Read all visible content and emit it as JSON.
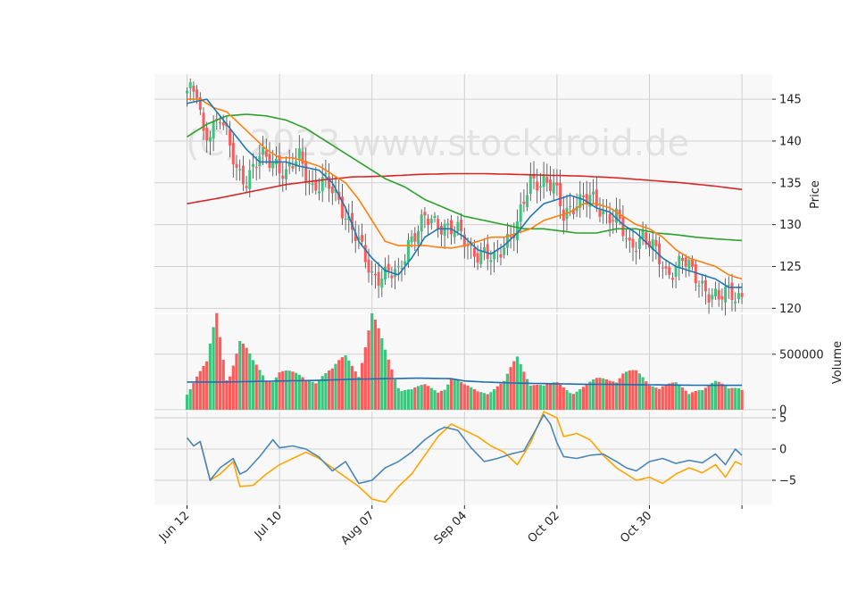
{
  "chart_data": {
    "type": "candlestick",
    "watermark": "(C) 2023 www.stockdroid.de",
    "x_tick_labels": [
      "Jun 12",
      "Jul 10",
      "Aug 07",
      "Sep 04",
      "Oct 02",
      "Oct 30"
    ],
    "x_tick_index": [
      0,
      28,
      56,
      84,
      112,
      140
    ],
    "colors": {
      "up": "#3dc47e",
      "down": "#ff5a5a",
      "ma_fast": "#1f77b4",
      "ma_mid": "#ff7f0e",
      "ma_slow": "#2ca02c",
      "ma_long": "#d62728",
      "vol_ma": "#1f6cb4",
      "osc_a": "#4a86b8",
      "osc_b": "#ffa500",
      "panel_bg": "#f8f8f8",
      "grid": "#d0d0d0"
    },
    "price_panel": {
      "ylabel": "Price",
      "ylim": [
        119.5,
        148
      ],
      "ticks": [
        120,
        125,
        130,
        135,
        140,
        145
      ]
    },
    "volume_panel": {
      "ylabel": "Volume",
      "ylim": [
        0,
        860000
      ],
      "ticks": [
        0,
        500000
      ],
      "tick_labels": [
        "0",
        "500000"
      ]
    },
    "osc_panel": {
      "ylabel": "",
      "ylim": [
        -9,
        6
      ],
      "ticks": [
        -5,
        0,
        5
      ]
    },
    "close_anchors": [
      [
        0,
        146
      ],
      [
        3,
        145.5
      ],
      [
        5,
        140.5
      ],
      [
        8,
        142
      ],
      [
        10,
        143
      ],
      [
        15,
        136.5
      ],
      [
        18,
        135.5
      ],
      [
        22,
        138
      ],
      [
        27,
        137.5
      ],
      [
        30,
        136
      ],
      [
        34,
        138
      ],
      [
        38,
        134.5
      ],
      [
        42,
        135
      ],
      [
        46,
        133
      ],
      [
        50,
        129.5
      ],
      [
        56,
        124
      ],
      [
        60,
        124
      ],
      [
        64,
        124
      ],
      [
        67,
        128
      ],
      [
        72,
        130.5
      ],
      [
        78,
        130
      ],
      [
        82,
        129
      ],
      [
        86,
        127
      ],
      [
        90,
        126.5
      ],
      [
        93,
        125.5
      ],
      [
        97,
        128.5
      ],
      [
        100,
        130
      ],
      [
        104,
        135
      ],
      [
        108,
        135.5
      ],
      [
        111,
        134.5
      ],
      [
        114,
        131
      ],
      [
        118,
        133
      ],
      [
        122,
        133
      ],
      [
        126,
        131.5
      ],
      [
        130,
        131
      ],
      [
        134,
        127
      ],
      [
        138,
        129
      ],
      [
        142,
        126.5
      ],
      [
        145,
        124
      ],
      [
        150,
        126
      ],
      [
        153,
        124
      ],
      [
        158,
        122
      ],
      [
        161,
        121
      ],
      [
        164,
        122
      ],
      [
        167,
        121.5
      ]
    ],
    "volume_anchors": [
      [
        0,
        170000
      ],
      [
        3,
        290000
      ],
      [
        6,
        380000
      ],
      [
        9,
        800000
      ],
      [
        12,
        300000
      ],
      [
        16,
        600000
      ],
      [
        20,
        390000
      ],
      [
        24,
        270000
      ],
      [
        28,
        350000
      ],
      [
        32,
        300000
      ],
      [
        36,
        260000
      ],
      [
        40,
        310000
      ],
      [
        44,
        330000
      ],
      [
        48,
        450000
      ],
      [
        52,
        370000
      ],
      [
        56,
        800000
      ],
      [
        60,
        480000
      ],
      [
        64,
        220000
      ],
      [
        68,
        180000
      ],
      [
        72,
        200000
      ],
      [
        76,
        160000
      ],
      [
        80,
        290000
      ],
      [
        84,
        200000
      ],
      [
        88,
        160000
      ],
      [
        92,
        180000
      ],
      [
        96,
        230000
      ],
      [
        100,
        440000
      ],
      [
        104,
        270000
      ],
      [
        108,
        200000
      ],
      [
        112,
        220000
      ],
      [
        116,
        170000
      ],
      [
        120,
        200000
      ],
      [
        124,
        250000
      ],
      [
        128,
        270000
      ],
      [
        132,
        340000
      ],
      [
        136,
        310000
      ],
      [
        140,
        210000
      ],
      [
        144,
        240000
      ],
      [
        148,
        220000
      ],
      [
        152,
        130000
      ],
      [
        156,
        220000
      ],
      [
        160,
        240000
      ],
      [
        164,
        170000
      ],
      [
        167,
        200000
      ]
    ],
    "osc_a_anchors": [
      [
        0,
        1.8
      ],
      [
        2,
        0.5
      ],
      [
        4,
        1.2
      ],
      [
        7,
        -5
      ],
      [
        10,
        -3
      ],
      [
        14,
        -1.5
      ],
      [
        16,
        -4
      ],
      [
        18,
        -3.5
      ],
      [
        22,
        -1.2
      ],
      [
        26,
        1.5
      ],
      [
        28,
        0.2
      ],
      [
        32,
        0.5
      ],
      [
        36,
        0
      ],
      [
        40,
        -1.3
      ],
      [
        44,
        -3.5
      ],
      [
        48,
        -2
      ],
      [
        52,
        -5.5
      ],
      [
        56,
        -5
      ],
      [
        60,
        -3
      ],
      [
        64,
        -2
      ],
      [
        68,
        -0.5
      ],
      [
        72,
        1.5
      ],
      [
        76,
        3
      ],
      [
        78,
        3.5
      ],
      [
        82,
        3
      ],
      [
        86,
        0.2
      ],
      [
        90,
        -2
      ],
      [
        94,
        -1.5
      ],
      [
        98,
        -0.8
      ],
      [
        102,
        -0.3
      ],
      [
        106,
        3.5
      ],
      [
        108,
        5.5
      ],
      [
        110,
        4
      ],
      [
        112,
        1
      ],
      [
        114,
        -1.2
      ],
      [
        118,
        -1.5
      ],
      [
        122,
        -1
      ],
      [
        126,
        -0.8
      ],
      [
        130,
        -2
      ],
      [
        133,
        -3
      ],
      [
        136,
        -3.5
      ],
      [
        140,
        -2
      ],
      [
        144,
        -1.5
      ],
      [
        148,
        -2.3
      ],
      [
        152,
        -1.8
      ],
      [
        156,
        -2.2
      ],
      [
        160,
        -0.8
      ],
      [
        163,
        -2.5
      ],
      [
        166,
        0
      ],
      [
        168,
        -1
      ]
    ],
    "osc_b_anchors": [
      [
        0,
        1.8
      ],
      [
        2,
        0.5
      ],
      [
        4,
        1.2
      ],
      [
        7,
        -5
      ],
      [
        10,
        -4
      ],
      [
        14,
        -2
      ],
      [
        16,
        -6
      ],
      [
        20,
        -5.8
      ],
      [
        24,
        -4
      ],
      [
        28,
        -2.5
      ],
      [
        32,
        -1.5
      ],
      [
        36,
        -0.5
      ],
      [
        40,
        -1.5
      ],
      [
        44,
        -3
      ],
      [
        48,
        -4.5
      ],
      [
        52,
        -6
      ],
      [
        56,
        -8
      ],
      [
        60,
        -8.5
      ],
      [
        64,
        -6
      ],
      [
        68,
        -4
      ],
      [
        72,
        -1
      ],
      [
        76,
        2
      ],
      [
        80,
        4
      ],
      [
        84,
        3
      ],
      [
        88,
        2
      ],
      [
        92,
        0.5
      ],
      [
        96,
        -0.5
      ],
      [
        100,
        -2.5
      ],
      [
        104,
        1
      ],
      [
        108,
        6
      ],
      [
        110,
        5.5
      ],
      [
        112,
        5
      ],
      [
        114,
        2
      ],
      [
        118,
        2.5
      ],
      [
        122,
        1.5
      ],
      [
        126,
        -1
      ],
      [
        130,
        -3
      ],
      [
        133,
        -4
      ],
      [
        136,
        -5
      ],
      [
        140,
        -4.5
      ],
      [
        144,
        -5.5
      ],
      [
        148,
        -4
      ],
      [
        152,
        -3
      ],
      [
        156,
        -3.8
      ],
      [
        160,
        -2.5
      ],
      [
        163,
        -4.5
      ],
      [
        166,
        -2
      ],
      [
        168,
        -2.5
      ]
    ],
    "ma_fast_anchors": [
      [
        0,
        144.5
      ],
      [
        6,
        145
      ],
      [
        10,
        143
      ],
      [
        14,
        141
      ],
      [
        18,
        139
      ],
      [
        22,
        137.5
      ],
      [
        30,
        137.5
      ],
      [
        34,
        137
      ],
      [
        40,
        136.5
      ],
      [
        44,
        135
      ],
      [
        48,
        132
      ],
      [
        52,
        128
      ],
      [
        56,
        126
      ],
      [
        60,
        124.5
      ],
      [
        64,
        124
      ],
      [
        68,
        126
      ],
      [
        72,
        128.5
      ],
      [
        76,
        129.5
      ],
      [
        80,
        129.5
      ],
      [
        84,
        128.5
      ],
      [
        88,
        127
      ],
      [
        92,
        126.5
      ],
      [
        96,
        127.5
      ],
      [
        100,
        129
      ],
      [
        104,
        131
      ],
      [
        108,
        132.5
      ],
      [
        112,
        133
      ],
      [
        116,
        133.5
      ],
      [
        120,
        133
      ],
      [
        124,
        132
      ],
      [
        128,
        131.5
      ],
      [
        132,
        130
      ],
      [
        136,
        129
      ],
      [
        140,
        127.5
      ],
      [
        144,
        126
      ],
      [
        148,
        125
      ],
      [
        152,
        124.5
      ],
      [
        156,
        124
      ],
      [
        160,
        123.5
      ],
      [
        164,
        122.5
      ],
      [
        168,
        122.5
      ]
    ],
    "ma_mid_anchors": [
      [
        0,
        145
      ],
      [
        4,
        145
      ],
      [
        8,
        144
      ],
      [
        12,
        143.5
      ],
      [
        16,
        142
      ],
      [
        20,
        140.5
      ],
      [
        24,
        139
      ],
      [
        28,
        138
      ],
      [
        32,
        138
      ],
      [
        36,
        137.5
      ],
      [
        40,
        137
      ],
      [
        44,
        136
      ],
      [
        48,
        135
      ],
      [
        52,
        133
      ],
      [
        56,
        130.5
      ],
      [
        60,
        128
      ],
      [
        64,
        127.5
      ],
      [
        68,
        127.5
      ],
      [
        72,
        127.5
      ],
      [
        76,
        127.3
      ],
      [
        80,
        127.2
      ],
      [
        84,
        127.5
      ],
      [
        88,
        128
      ],
      [
        92,
        128.5
      ],
      [
        96,
        128.5
      ],
      [
        100,
        129
      ],
      [
        104,
        129.5
      ],
      [
        108,
        130.5
      ],
      [
        112,
        131
      ],
      [
        116,
        131.5
      ],
      [
        120,
        132.5
      ],
      [
        124,
        132.5
      ],
      [
        128,
        132
      ],
      [
        132,
        131
      ],
      [
        136,
        130
      ],
      [
        140,
        129.5
      ],
      [
        144,
        128.5
      ],
      [
        148,
        127
      ],
      [
        152,
        126
      ],
      [
        156,
        125.5
      ],
      [
        160,
        125
      ],
      [
        164,
        124
      ],
      [
        168,
        123.5
      ]
    ],
    "ma_slow_anchors": [
      [
        0,
        140.5
      ],
      [
        6,
        142
      ],
      [
        12,
        143
      ],
      [
        18,
        143.2
      ],
      [
        24,
        143
      ],
      [
        30,
        142.5
      ],
      [
        36,
        141.5
      ],
      [
        42,
        140
      ],
      [
        48,
        138.5
      ],
      [
        54,
        137
      ],
      [
        60,
        135.5
      ],
      [
        66,
        134.5
      ],
      [
        72,
        133
      ],
      [
        78,
        132
      ],
      [
        84,
        131
      ],
      [
        90,
        130.5
      ],
      [
        96,
        130
      ],
      [
        102,
        129.5
      ],
      [
        108,
        129.5
      ],
      [
        112,
        129.3
      ],
      [
        118,
        129
      ],
      [
        124,
        129
      ],
      [
        130,
        129.5
      ],
      [
        136,
        129.5
      ],
      [
        142,
        129
      ],
      [
        148,
        128.8
      ],
      [
        154,
        128.5
      ],
      [
        160,
        128.3
      ],
      [
        168,
        128.1
      ]
    ],
    "ma_long_anchors": [
      [
        0,
        132.5
      ],
      [
        10,
        133.2
      ],
      [
        20,
        134
      ],
      [
        30,
        134.8
      ],
      [
        40,
        135.3
      ],
      [
        50,
        135.7
      ],
      [
        60,
        135.8
      ],
      [
        70,
        136
      ],
      [
        80,
        136.1
      ],
      [
        90,
        136.1
      ],
      [
        100,
        136
      ],
      [
        110,
        135.9
      ],
      [
        120,
        135.8
      ],
      [
        130,
        135.6
      ],
      [
        140,
        135.3
      ],
      [
        150,
        135
      ],
      [
        160,
        134.6
      ],
      [
        168,
        134.2
      ]
    ],
    "vol_ma_anchors": [
      [
        0,
        250000
      ],
      [
        12,
        250000
      ],
      [
        20,
        255000
      ],
      [
        30,
        260000
      ],
      [
        40,
        265000
      ],
      [
        50,
        275000
      ],
      [
        60,
        280000
      ],
      [
        70,
        285000
      ],
      [
        80,
        280000
      ],
      [
        84,
        260000
      ],
      [
        90,
        250000
      ],
      [
        100,
        240000
      ],
      [
        110,
        235000
      ],
      [
        120,
        230000
      ],
      [
        130,
        228000
      ],
      [
        140,
        225000
      ],
      [
        150,
        222000
      ],
      [
        160,
        220000
      ],
      [
        168,
        220000
      ]
    ],
    "num_bars": 169
  }
}
